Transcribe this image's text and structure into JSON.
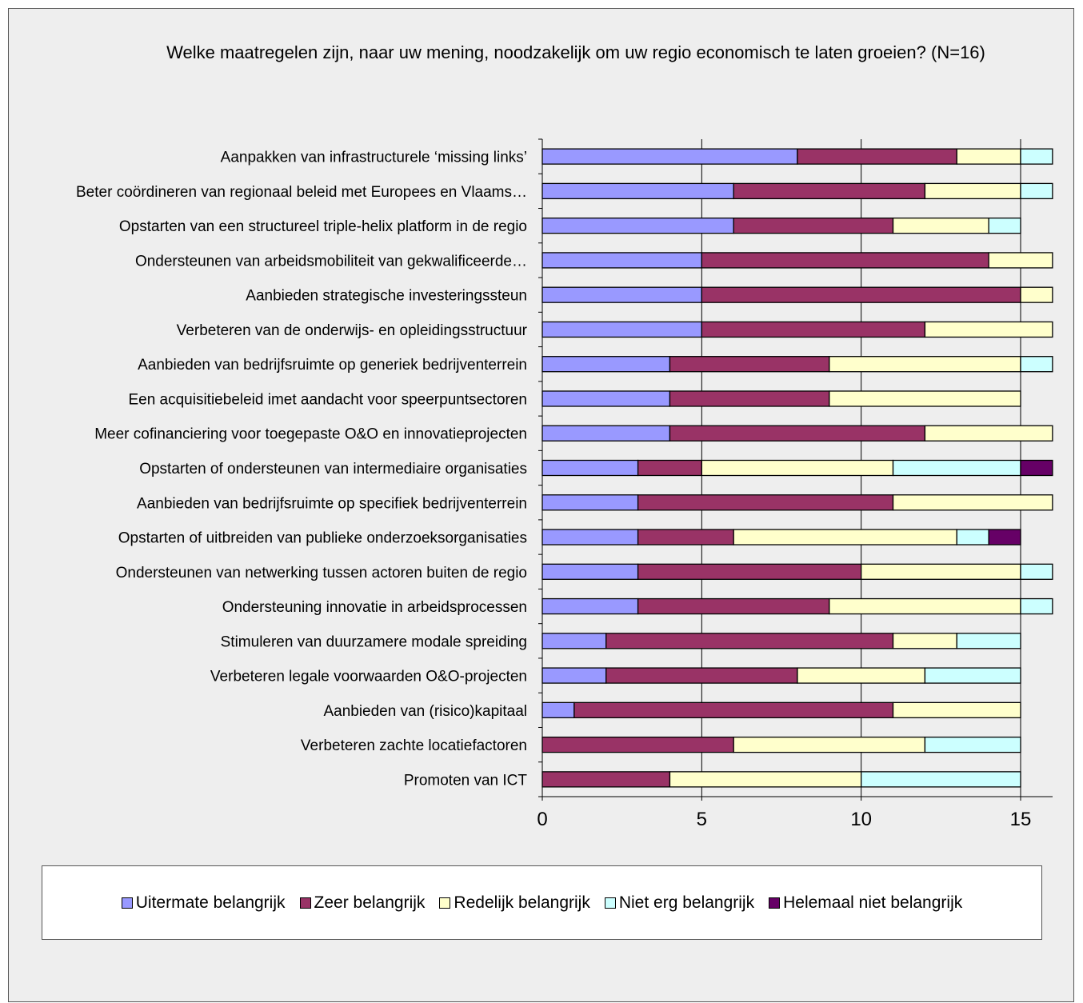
{
  "chart_data": {
    "type": "bar",
    "orientation": "horizontal",
    "stacked": true,
    "title": "Welke maatregelen zijn, naar uw mening, noodzakelijk om uw regio economisch te laten groeien? (N=16)",
    "categories": [
      "Aanpakken van infrastructurele ‘missing links’",
      "Beter coördineren van regionaal beleid met Europees en Vlaams…",
      "Opstarten van een structureel triple-helix platform in de regio",
      "Ondersteunen van arbeidsmobiliteit van gekwalificeerde…",
      "Aanbieden strategische investeringssteun",
      "Verbeteren van de onderwijs- en opleidingsstructuur",
      "Aanbieden van bedrijfsruimte op generiek bedrijventerrein",
      "Een  acquisitiebeleid imet aandacht voor speerpuntsectoren",
      "Meer cofinanciering voor toegepaste O&O en innovatieprojecten",
      "Opstarten of ondersteunen van intermediaire organisaties",
      "Aanbieden van bedrijfsruimte op specifiek bedrijventerrein",
      "Opstarten of uitbreiden van  publieke onderzoeksorganisaties",
      "Ondersteunen van netwerking tussen actoren buiten de regio",
      "Ondersteuning innovatie in arbeidsprocessen",
      "Stimuleren van duurzamere modale spreiding",
      "Verbeteren legale voorwaarden O&O-projecten",
      "Aanbieden van (risico)kapitaal",
      "Verbeteren zachte locatiefactoren",
      "Promoten van ICT"
    ],
    "series": [
      {
        "name": "Uitermate belangrijk",
        "color": "#9999ff",
        "values": [
          8,
          6,
          6,
          5,
          5,
          5,
          4,
          4,
          4,
          3,
          3,
          3,
          3,
          3,
          2,
          2,
          1,
          0,
          0
        ]
      },
      {
        "name": "Zeer belangrijk",
        "color": "#993366",
        "values": [
          5,
          6,
          5,
          9,
          10,
          7,
          5,
          5,
          8,
          2,
          8,
          3,
          7,
          6,
          9,
          6,
          10,
          6,
          4
        ]
      },
      {
        "name": "Redelijk belangrijk",
        "color": "#ffffcc",
        "values": [
          2,
          3,
          3,
          2,
          1,
          4,
          6,
          6,
          4,
          6,
          5,
          7,
          5,
          6,
          2,
          4,
          4,
          6,
          6
        ]
      },
      {
        "name": "Niet erg belangrijk",
        "color": "#ccffff",
        "values": [
          1,
          1,
          1,
          0,
          0,
          0,
          1,
          0,
          0,
          4,
          0,
          1,
          1,
          1,
          2,
          3,
          0,
          3,
          5
        ]
      },
      {
        "name": "Helemaal niet belangrijk",
        "color": "#660066",
        "values": [
          0,
          0,
          0,
          0,
          0,
          0,
          0,
          0,
          0,
          1,
          0,
          1,
          0,
          0,
          0,
          0,
          0,
          0,
          0
        ]
      }
    ],
    "xlim": [
      0,
      16
    ],
    "xticks": [
      0,
      5,
      10,
      15
    ],
    "xlabel": "",
    "ylabel": "",
    "grid": "vertical",
    "legend_position": "bottom"
  }
}
